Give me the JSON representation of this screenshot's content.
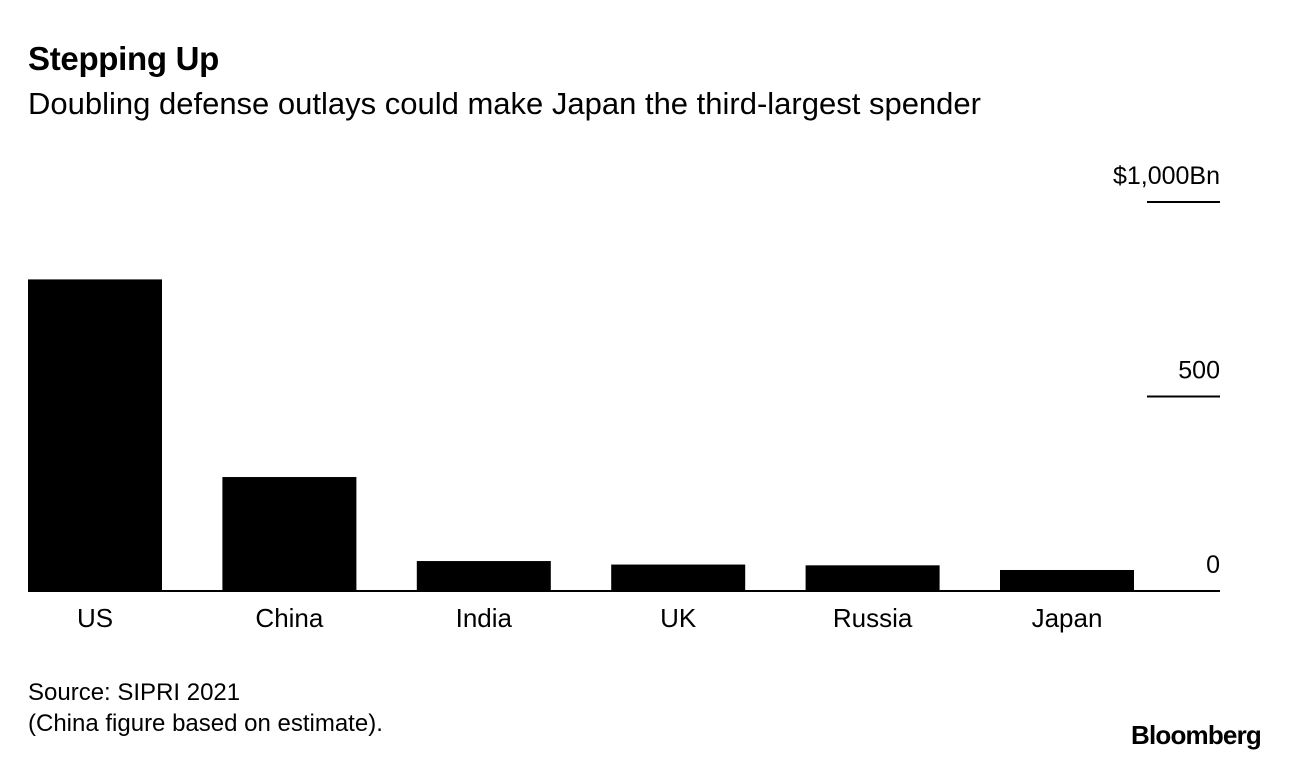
{
  "chart_data": {
    "type": "bar",
    "title": "Stepping Up",
    "subtitle": "Doubling defense outlays could make Japan the third-largest spender",
    "categories": [
      "US",
      "China",
      "India",
      "UK",
      "Russia",
      "Japan"
    ],
    "values": [
      801,
      293,
      77,
      68,
      66,
      54
    ],
    "ylim": [
      0,
      1000
    ],
    "yticks": [
      {
        "value": 1000,
        "label": "$1,000Bn"
      },
      {
        "value": 500,
        "label": "500"
      },
      {
        "value": 0,
        "label": "0"
      }
    ],
    "bar_color": "#000000",
    "axis_position": "right"
  },
  "source_line1": "Source: SIPRI 2021",
  "source_line2": "(China figure based on estimate).",
  "brand": "Bloomberg"
}
